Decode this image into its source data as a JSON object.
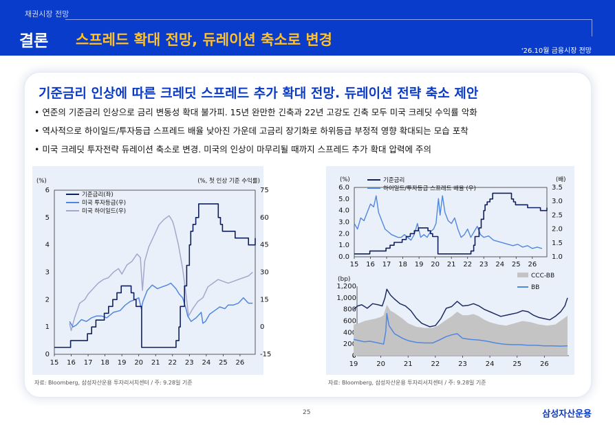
{
  "header": {
    "section": "채권시장 전망",
    "conclusion_label": "결론",
    "title": "스프레드 확대 전망, 듀레이션 축소로 변경",
    "report_tag": "'26.10월 금융시장 전망"
  },
  "main": {
    "headline": "기준금리 인상에 따른 크레딧 스프레드 추가 확대 전망. 듀레이션 전략 축소 제안",
    "bullets": [
      "연준의 기준금리 인상으로 금리 변동성 확대 불가피. 15년 완만한 긴축과 22년 고강도 긴축 모두 미국 크레딧 수익률 악화",
      "역사적으로 하이일드/투자등급 스프레드 배율 낮아진 가운데 고금리 장기화로 하위등급 부정적 영향 확대되는 모습 포착",
      "미국 크레딧 투자전략 듀레이션 축소로 변경. 미국의 인상이 마무리될 때까지 스프레드 추가 확대 압력에 주의"
    ],
    "source_left": "자료: Bloomberg, 삼성자산운용 투자리서치센터 / 주: 9.28일 기준",
    "source_right": "자료: Bloomberg, 삼성자산운용 투자리서치센터 / 주: 9.28일 기준"
  },
  "footer": {
    "page_number": "25",
    "brand": "삼성자산운용"
  },
  "colors": {
    "header_bg": "#0a3ccb",
    "title_accent": "#ffc12b",
    "policy_rate": "#0f1f5c",
    "ig": "#4f86e0",
    "hy": "#a4a6cc",
    "ccc_bb": "#c4c4c4",
    "bb": "#4f86e0"
  },
  "chart_data": [
    {
      "type": "line",
      "left_unit": "(%)",
      "right_unit": "(%, 첫 인상 기준 수익률)",
      "x_ticks": [
        "15",
        "16",
        "17",
        "18",
        "19",
        "20",
        "21",
        "22",
        "23",
        "24",
        "25",
        "26"
      ],
      "x_range": [
        2015,
        2026.9
      ],
      "y_left_ticks": [
        "0",
        "1",
        "2",
        "3",
        "4",
        "5",
        "6"
      ],
      "y_left_range": [
        0,
        6
      ],
      "y_right_ticks": [
        "-15",
        "0",
        "15",
        "30",
        "45",
        "60",
        "75"
      ],
      "y_right_range": [
        -15,
        75
      ],
      "series": [
        {
          "name": "기준금리(좌)",
          "axis": "left",
          "color": "#0f1f5c",
          "step": true,
          "x": [
            2015.0,
            2015.96,
            2016.96,
            2017.21,
            2017.46,
            2017.96,
            2018.21,
            2018.46,
            2018.71,
            2018.96,
            2019.55,
            2019.71,
            2019.84,
            2020.17,
            2022.21,
            2022.38,
            2022.46,
            2022.71,
            2022.84,
            2023.0,
            2023.08,
            2023.21,
            2023.38,
            2023.55,
            2024.71,
            2024.84,
            2024.96,
            2025.71,
            2026.5,
            2026.9
          ],
          "y": [
            0.25,
            0.5,
            0.75,
            1.0,
            1.25,
            1.5,
            1.75,
            2.0,
            2.25,
            2.5,
            2.25,
            2.0,
            1.75,
            0.25,
            0.5,
            1.0,
            1.75,
            2.5,
            3.25,
            4.0,
            4.5,
            4.75,
            5.0,
            5.5,
            5.0,
            4.75,
            4.5,
            4.25,
            4.0,
            4.25
          ]
        },
        {
          "name": "미국 투자등급(우)",
          "axis": "right",
          "color": "#4f86e0",
          "x": [
            2015.9,
            2016.1,
            2016.3,
            2016.6,
            2016.9,
            2017.2,
            2017.5,
            2017.8,
            2018.1,
            2018.5,
            2018.9,
            2019.2,
            2019.5,
            2019.8,
            2020.0,
            2020.15,
            2020.25,
            2020.5,
            2020.8,
            2021.1,
            2021.4,
            2021.7,
            2021.9,
            2022.1,
            2022.2,
            2022.4,
            2022.6,
            2022.8,
            2022.9,
            2023.1,
            2023.4,
            2023.7,
            2023.8,
            2023.95,
            2024.2,
            2024.5,
            2024.8,
            2025.1,
            2025.3,
            2025.6,
            2025.9,
            2026.2,
            2026.5,
            2026.75
          ],
          "y": [
            3,
            0,
            1,
            4,
            3,
            5,
            6,
            6,
            5,
            8,
            9,
            12,
            14,
            15,
            16,
            10,
            14,
            20,
            23,
            21,
            22,
            23,
            24,
            22,
            21,
            18,
            16,
            10,
            6,
            3,
            5,
            8,
            2,
            3,
            7,
            9,
            11,
            10,
            12,
            12,
            13,
            16,
            13,
            13
          ]
        },
        {
          "name": "미국 하이일드(우)",
          "axis": "right",
          "color": "#a4a6cc",
          "x": [
            2015.9,
            2016.0,
            2016.2,
            2016.5,
            2016.8,
            2017.0,
            2017.3,
            2017.6,
            2017.9,
            2018.2,
            2018.5,
            2018.8,
            2019.0,
            2019.3,
            2019.6,
            2019.9,
            2020.1,
            2020.22,
            2020.35,
            2020.6,
            2020.9,
            2021.2,
            2021.5,
            2021.8,
            2022.0,
            2022.1,
            2022.35,
            2022.6,
            2022.8,
            2022.95,
            2023.2,
            2023.5,
            2023.8,
            2024.1,
            2024.4,
            2024.7,
            2025.0,
            2025.3,
            2025.6,
            2025.9,
            2026.2,
            2026.5,
            2026.75
          ],
          "y": [
            2,
            -2,
            5,
            13,
            15,
            18,
            21,
            24,
            26,
            27,
            30,
            32,
            29,
            34,
            36,
            40,
            38,
            20,
            36,
            44,
            50,
            56,
            59,
            61,
            58,
            55,
            45,
            32,
            18,
            6,
            10,
            14,
            16,
            22,
            24,
            26,
            25,
            24,
            25,
            26,
            27,
            28,
            30
          ]
        }
      ]
    },
    {
      "type": "line",
      "left_unit": "(%)",
      "right_unit": "(배)",
      "x_ticks": [
        "15",
        "16",
        "17",
        "18",
        "19",
        "20",
        "21",
        "22",
        "23",
        "24",
        "25",
        "26"
      ],
      "x_range": [
        2015,
        2026.9
      ],
      "y_left_ticks": [
        "0.0",
        "1.0",
        "2.0",
        "3.0",
        "4.0",
        "5.0",
        "6.0"
      ],
      "y_left_range": [
        0,
        6
      ],
      "y_right_ticks": [
        "1.0",
        "1.5",
        "2.0",
        "2.5",
        "3.0",
        "3.5"
      ],
      "y_right_range": [
        1.0,
        3.5
      ],
      "series": [
        {
          "name": "기준금리",
          "axis": "left",
          "color": "#0f1f5c",
          "step": true,
          "x": [
            2015.0,
            2015.96,
            2016.96,
            2017.21,
            2017.46,
            2017.96,
            2018.21,
            2018.46,
            2018.71,
            2018.96,
            2019.55,
            2019.71,
            2019.84,
            2020.17,
            2022.21,
            2022.38,
            2022.46,
            2022.71,
            2022.84,
            2023.0,
            2023.08,
            2023.21,
            2023.38,
            2023.55,
            2024.71,
            2024.84,
            2024.96,
            2025.71,
            2026.5,
            2026.9
          ],
          "y": [
            0.25,
            0.5,
            0.75,
            1.0,
            1.25,
            1.5,
            1.75,
            2.0,
            2.25,
            2.5,
            2.25,
            2.0,
            1.75,
            0.25,
            0.5,
            1.0,
            1.75,
            2.5,
            3.25,
            4.0,
            4.5,
            4.75,
            5.0,
            5.5,
            5.0,
            4.75,
            4.5,
            4.25,
            4.0,
            4.25
          ]
        },
        {
          "name": "하이일드/투자등급 스프레드 배율 (우)",
          "axis": "right",
          "color": "#4f86e0",
          "x": [
            2015.0,
            2015.2,
            2015.4,
            2015.6,
            2015.8,
            2016.0,
            2016.2,
            2016.35,
            2016.5,
            2016.7,
            2016.9,
            2017.1,
            2017.3,
            2017.5,
            2017.7,
            2017.9,
            2018.1,
            2018.3,
            2018.5,
            2018.7,
            2018.9,
            2019.1,
            2019.3,
            2019.5,
            2019.7,
            2019.9,
            2020.05,
            2020.2,
            2020.3,
            2020.45,
            2020.6,
            2020.8,
            2021.0,
            2021.2,
            2021.4,
            2021.6,
            2021.8,
            2022.0,
            2022.2,
            2022.4,
            2022.6,
            2022.8,
            2023.0,
            2023.3,
            2023.6,
            2023.9,
            2024.2,
            2024.5,
            2024.8,
            2025.1,
            2025.4,
            2025.7,
            2026.0,
            2026.3,
            2026.6
          ],
          "y": [
            2.2,
            2.0,
            2.4,
            2.3,
            2.6,
            2.9,
            2.8,
            3.2,
            2.6,
            2.3,
            2.0,
            1.9,
            1.8,
            1.75,
            1.7,
            1.7,
            1.8,
            1.7,
            1.6,
            1.8,
            2.2,
            1.7,
            1.8,
            1.7,
            1.9,
            2.0,
            2.2,
            3.1,
            2.5,
            3.2,
            2.6,
            2.3,
            2.2,
            2.4,
            2.0,
            1.7,
            1.8,
            2.0,
            1.7,
            1.9,
            2.1,
            1.8,
            1.7,
            1.75,
            1.6,
            1.55,
            1.5,
            1.45,
            1.4,
            1.45,
            1.35,
            1.4,
            1.3,
            1.35,
            1.3
          ]
        }
      ]
    },
    {
      "type": "area",
      "unit": "(bp)",
      "x_ticks": [
        "19",
        "20",
        "21",
        "22",
        "23",
        "24",
        "25",
        "26"
      ],
      "x_range": [
        2019,
        2026.9
      ],
      "y_ticks": [
        "0",
        "200",
        "400",
        "600",
        "800",
        "1,000",
        "1,200"
      ],
      "y_range": [
        0,
        1200
      ],
      "series": [
        {
          "name": "CCC-BB",
          "kind": "area",
          "color": "#c4c4c4",
          "x": [
            2019.0,
            2019.2,
            2019.4,
            2019.6,
            2019.8,
            2020.0,
            2020.1,
            2020.22,
            2020.35,
            2020.5,
            2020.8,
            2021.0,
            2021.3,
            2021.6,
            2021.9,
            2022.1,
            2022.4,
            2022.6,
            2022.8,
            2023.0,
            2023.2,
            2023.4,
            2023.6,
            2023.8,
            2024.0,
            2024.3,
            2024.6,
            2024.9,
            2025.2,
            2025.5,
            2025.8,
            2026.1,
            2026.4,
            2026.7,
            2026.85
          ],
          "y": [
            540,
            560,
            600,
            620,
            640,
            670,
            700,
            880,
            780,
            740,
            640,
            560,
            500,
            480,
            480,
            520,
            620,
            680,
            760,
            700,
            700,
            720,
            680,
            620,
            580,
            540,
            520,
            560,
            600,
            580,
            540,
            520,
            540,
            640,
            690
          ]
        },
        {
          "name": "BB",
          "kind": "line",
          "color": "#4f86e0",
          "x": [
            2019.0,
            2019.2,
            2019.4,
            2019.6,
            2019.8,
            2020.0,
            2020.1,
            2020.18,
            2020.22,
            2020.3,
            2020.5,
            2020.8,
            2021.0,
            2021.3,
            2021.6,
            2021.9,
            2022.1,
            2022.4,
            2022.6,
            2022.8,
            2023.0,
            2023.3,
            2023.6,
            2023.9,
            2024.2,
            2024.5,
            2024.8,
            2025.1,
            2025.4,
            2025.7,
            2026.0,
            2026.3,
            2026.6,
            2026.85
          ],
          "y": [
            280,
            260,
            240,
            250,
            230,
            210,
            200,
            420,
            730,
            520,
            380,
            300,
            260,
            230,
            220,
            220,
            260,
            330,
            360,
            380,
            300,
            280,
            270,
            250,
            220,
            200,
            190,
            190,
            180,
            180,
            170,
            170,
            165,
            170
          ]
        },
        {
          "name": "CCC",
          "kind": "line",
          "color": "#1c2a63",
          "x": [
            2019.0,
            2019.15,
            2019.3,
            2019.5,
            2019.7,
            2019.9,
            2020.05,
            2020.15,
            2020.22,
            2020.35,
            2020.5,
            2020.7,
            2020.9,
            2021.1,
            2021.3,
            2021.5,
            2021.8,
            2022.0,
            2022.2,
            2022.4,
            2022.6,
            2022.8,
            2023.0,
            2023.2,
            2023.4,
            2023.6,
            2023.8,
            2024.0,
            2024.2,
            2024.4,
            2024.6,
            2024.8,
            2025.0,
            2025.2,
            2025.4,
            2025.6,
            2025.8,
            2026.0,
            2026.2,
            2026.4,
            2026.6,
            2026.75,
            2026.85
          ],
          "y": [
            800,
            860,
            880,
            820,
            900,
            880,
            860,
            1000,
            1150,
            1050,
            980,
            900,
            860,
            780,
            650,
            560,
            500,
            520,
            640,
            820,
            850,
            940,
            860,
            870,
            900,
            860,
            800,
            760,
            720,
            680,
            700,
            720,
            740,
            780,
            760,
            700,
            660,
            640,
            620,
            680,
            760,
            860,
            1000
          ]
        }
      ]
    }
  ]
}
